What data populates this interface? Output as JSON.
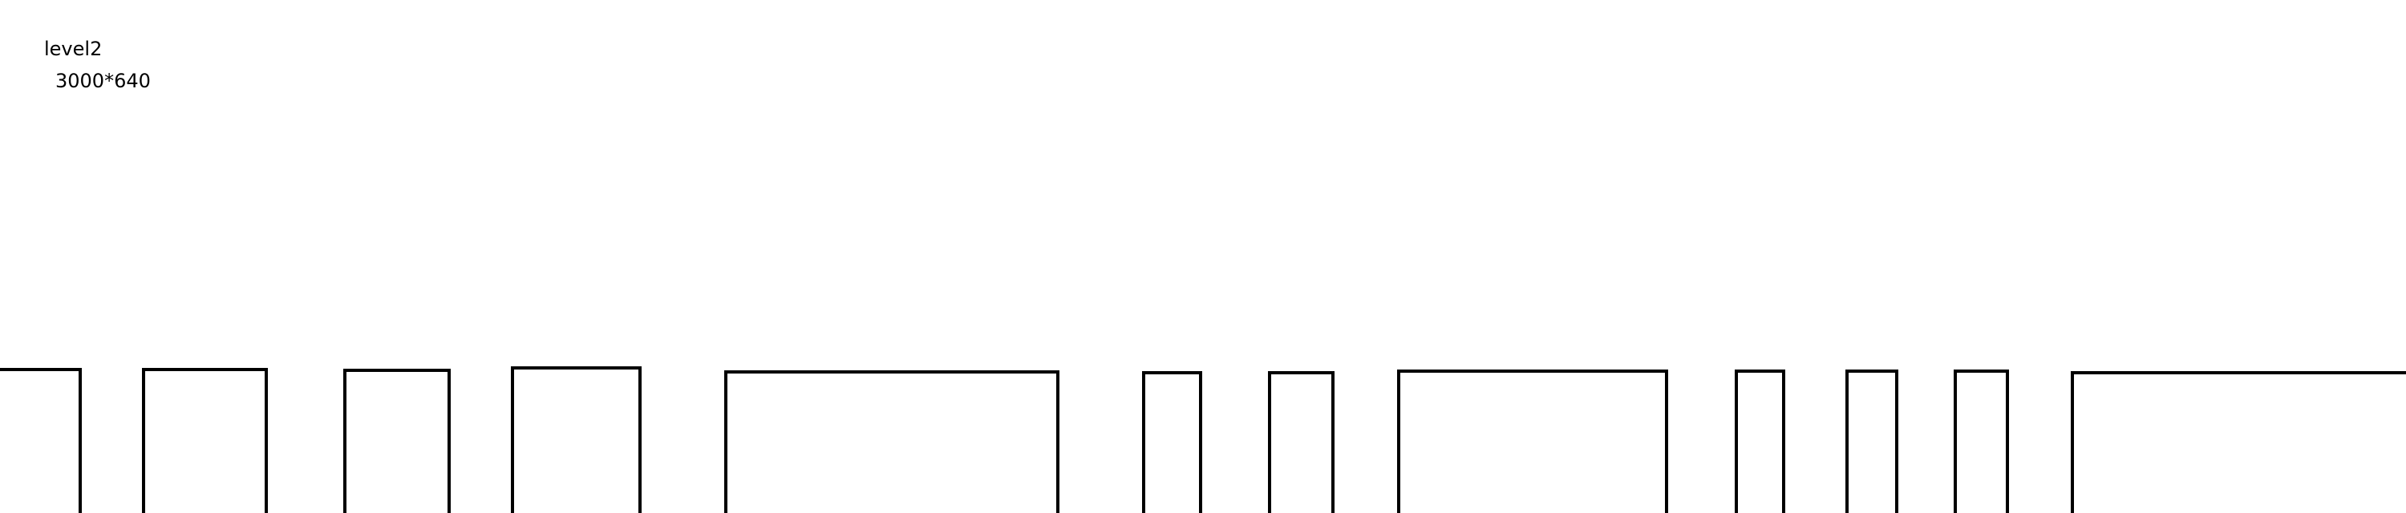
{
  "level": {
    "title": "level2",
    "size": "3000*640"
  },
  "colors": {
    "background": "#ffffff",
    "outline": "#000000"
  }
}
